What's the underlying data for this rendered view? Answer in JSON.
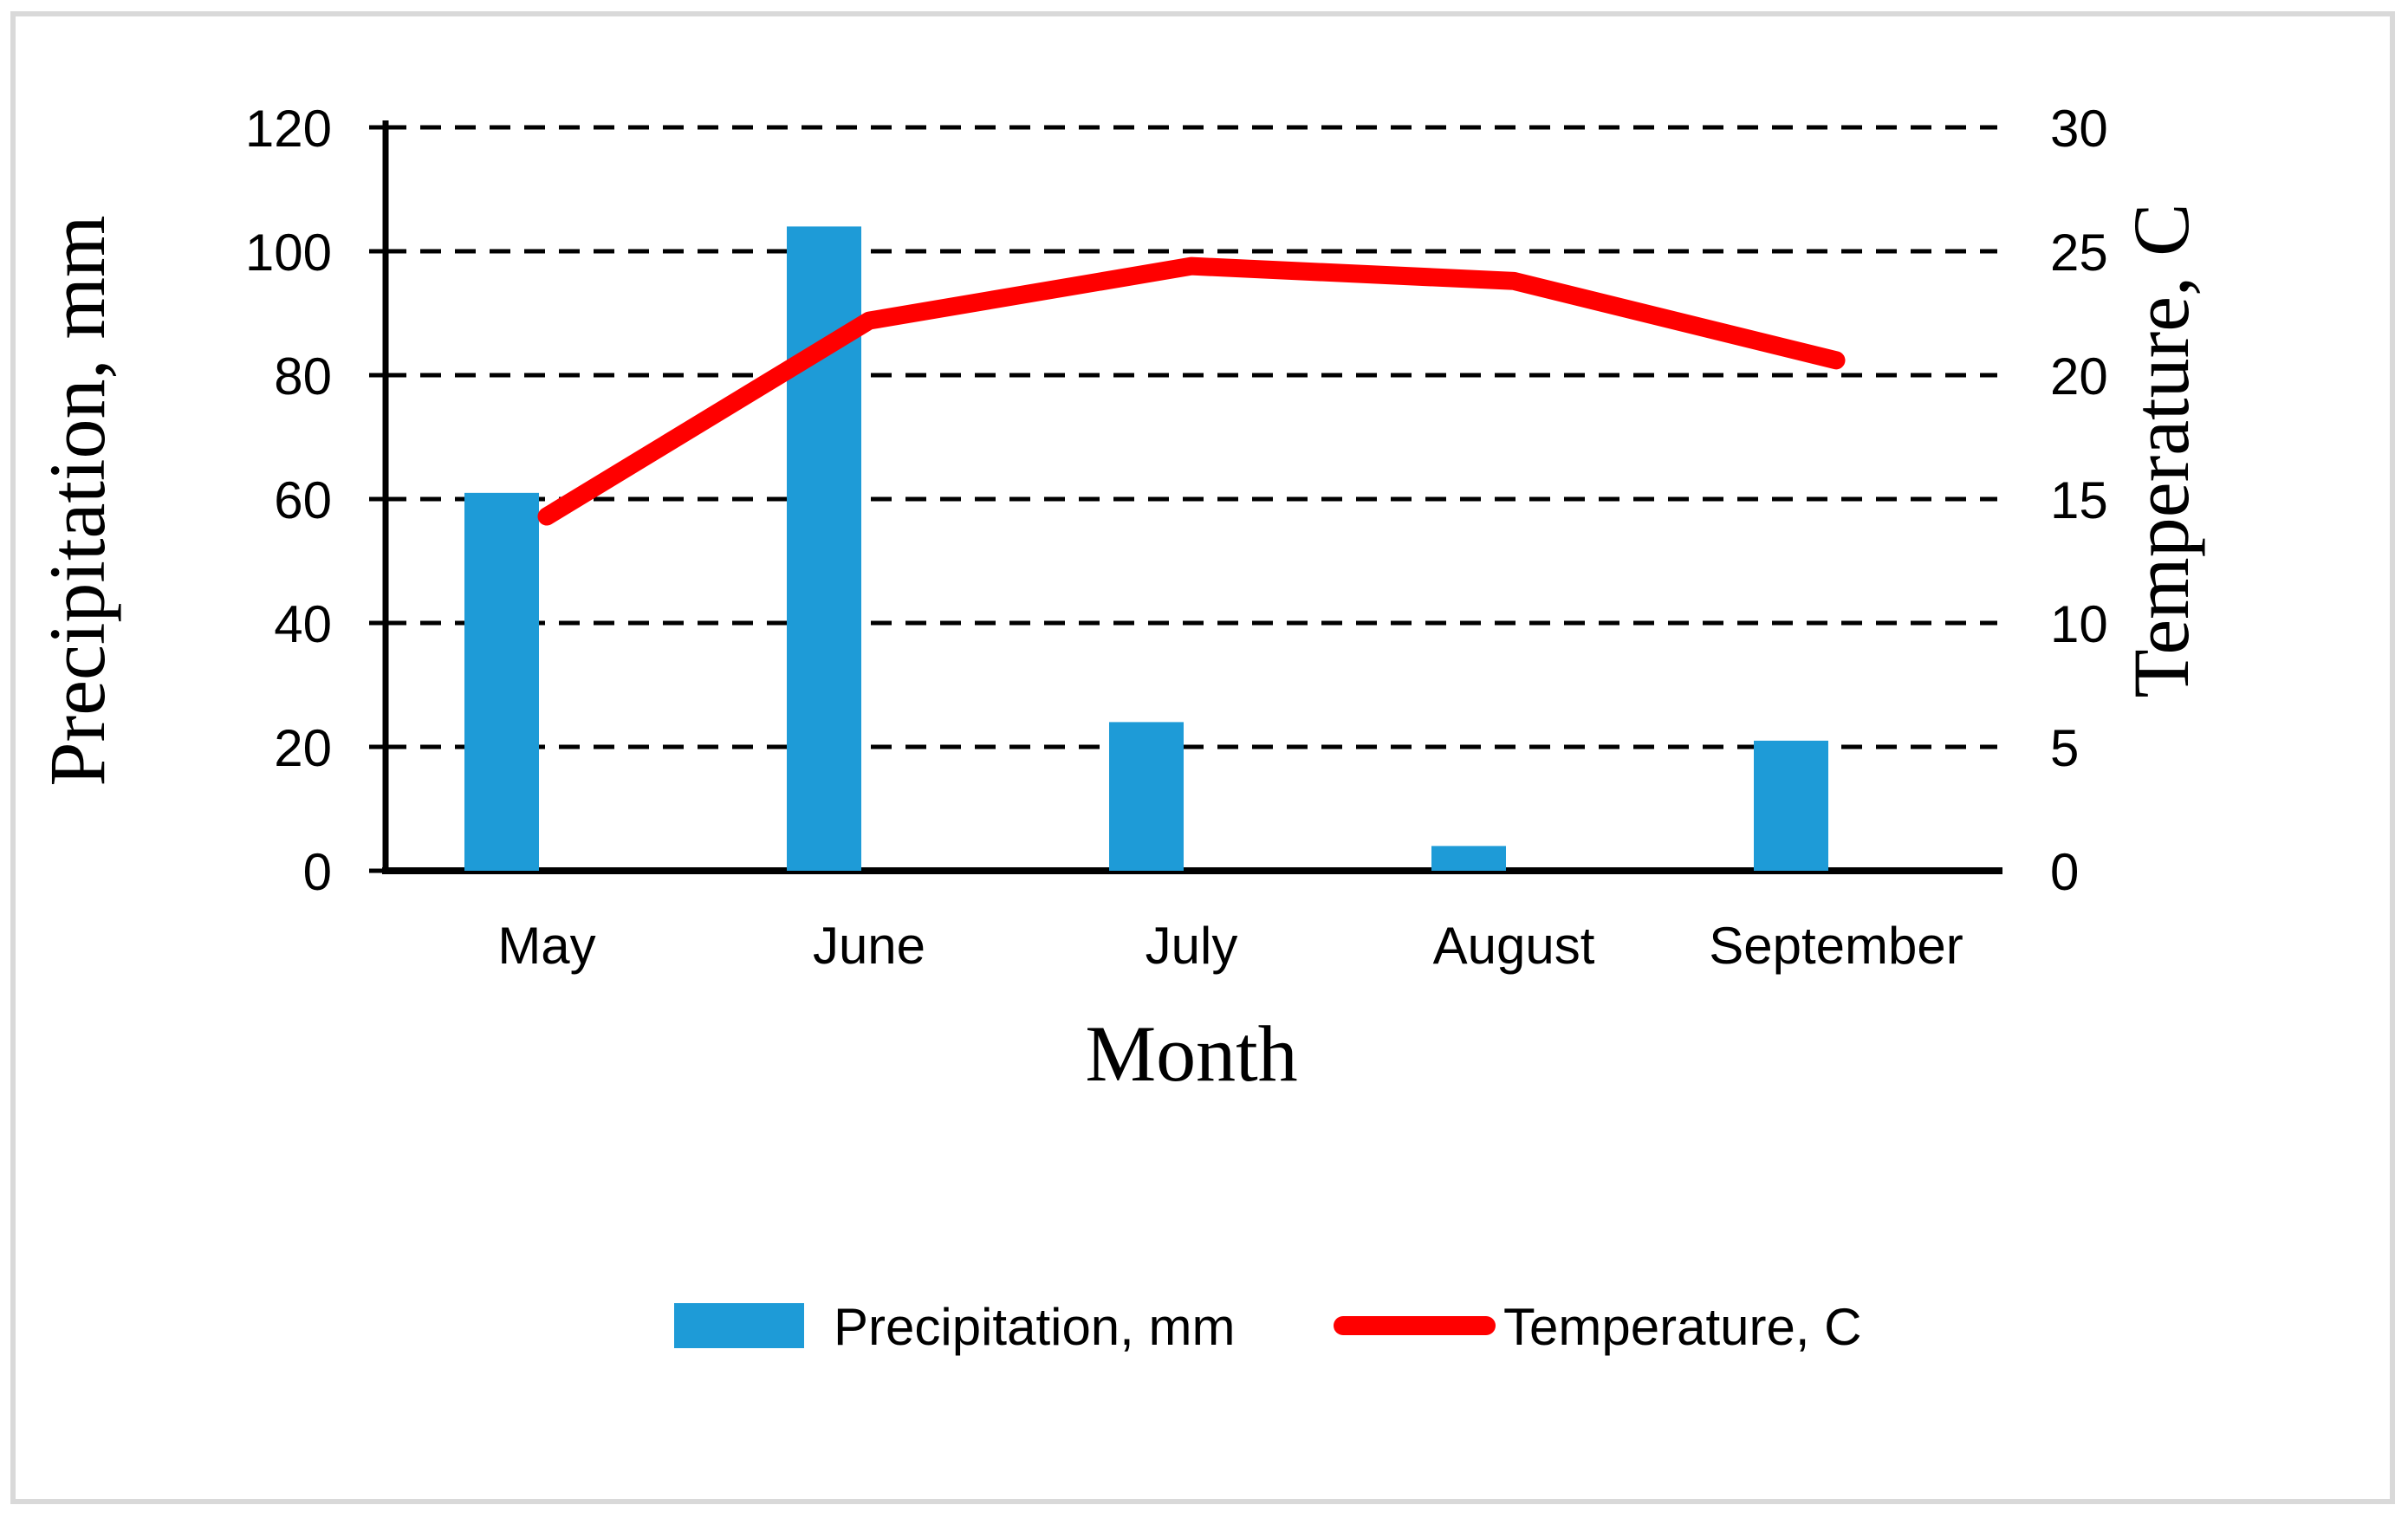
{
  "figure": {
    "background": "#FFFFFF",
    "border_color": "#D9D9D9"
  },
  "chart_data": {
    "type": "combo",
    "categories": [
      "May",
      "June",
      "July",
      "August",
      "September"
    ],
    "series": [
      {
        "name": "Precipitation, mm",
        "type": "bar",
        "axis": "left",
        "color": "#1E9BD7",
        "values": [
          61,
          104,
          24,
          4,
          21
        ]
      },
      {
        "name": "Temperature, C",
        "type": "line",
        "axis": "right",
        "color": "#FF0000",
        "values": [
          14.3,
          22.2,
          24.4,
          23.8,
          20.6
        ]
      }
    ],
    "x_axis": {
      "title": "Month",
      "labels": [
        "May",
        "June",
        "July",
        "August",
        "September"
      ]
    },
    "left_axis": {
      "title": "Precipitation, mm",
      "min": 0,
      "max": 120,
      "step": 20,
      "tick_labels": [
        "120",
        "100",
        "80",
        "60",
        "40",
        "20",
        "0"
      ]
    },
    "right_axis": {
      "title": "Temperature, C",
      "min": 0,
      "max": 30,
      "step": 5,
      "tick_labels": [
        "30",
        "25",
        "20",
        "15",
        "10",
        "5",
        "0"
      ]
    },
    "legend": {
      "position": "bottom",
      "items": [
        {
          "label": "Precipitation, mm",
          "marker": "bar",
          "color": "#1E9BD7"
        },
        {
          "label": "Temperature, C",
          "marker": "line",
          "color": "#FF0000"
        }
      ]
    },
    "grid": {
      "horizontal": "dashed",
      "color": "#000000"
    }
  }
}
